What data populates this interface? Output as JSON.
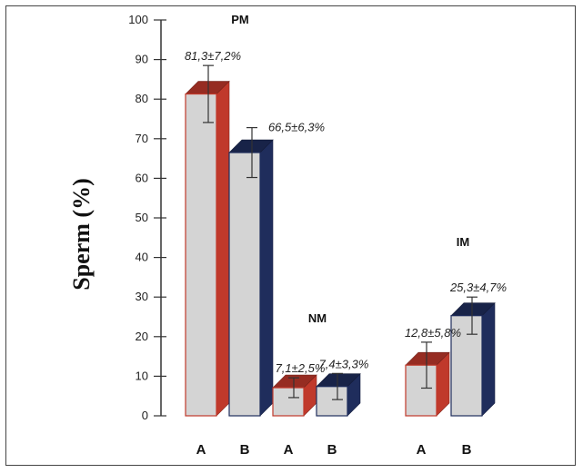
{
  "chart_data": {
    "type": "bar",
    "ylabel": "Sperm (%)",
    "ylim": [
      0,
      100
    ],
    "yticks": [
      0,
      10,
      20,
      30,
      40,
      50,
      60,
      70,
      80,
      90,
      100
    ],
    "groups": [
      {
        "name": "PM",
        "bars": [
          {
            "category": "A",
            "value": 81.3,
            "error": 7.2,
            "label": "81,3±7,2%",
            "color": "#c0392b"
          },
          {
            "category": "B",
            "value": 66.5,
            "error": 6.3,
            "label": "66,5±6,3%",
            "color": "#1f2d5c"
          }
        ]
      },
      {
        "name": "NM",
        "bars": [
          {
            "category": "A",
            "value": 7.1,
            "error": 2.5,
            "label": "7,1±2,5%",
            "color": "#c0392b"
          },
          {
            "category": "B",
            "value": 7.4,
            "error": 3.3,
            "label": "7,4±3,3%",
            "color": "#1f2d5c"
          }
        ]
      },
      {
        "name": "IM",
        "bars": [
          {
            "category": "A",
            "value": 12.8,
            "error": 5.8,
            "label": "12,8±5,8%",
            "color": "#c0392b"
          },
          {
            "category": "B",
            "value": 25.3,
            "error": 4.7,
            "label": "25,3±4,7%",
            "color": "#1f2d5c"
          }
        ]
      }
    ],
    "bar_face_color": "#d4d4d4",
    "grid": false,
    "legend": "none"
  }
}
